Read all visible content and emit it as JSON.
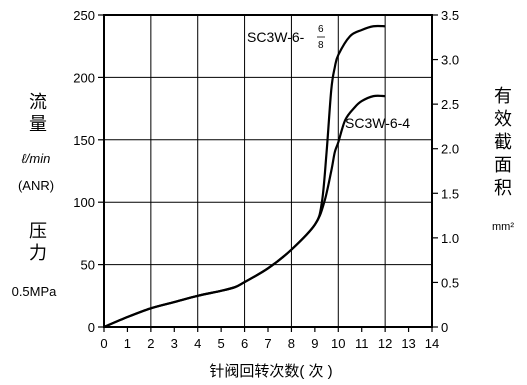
{
  "chart_data": {
    "type": "line",
    "x_axis": {
      "label": "针阀回转次数( 次 )",
      "range": [
        0,
        14
      ],
      "ticks": [
        "0",
        "1",
        "2",
        "3",
        "4",
        "5",
        "6",
        "7",
        "8",
        "9",
        "10",
        "11",
        "12",
        "13",
        "14"
      ]
    },
    "y_left": {
      "label_lines": [
        "流",
        "量"
      ],
      "unit": "ℓ/min",
      "unit_note": "(ANR)",
      "pressure_label_lines": [
        "压",
        "力"
      ],
      "pressure": "0.5MPa",
      "range": [
        0,
        250
      ],
      "ticks": [
        "0",
        "50",
        "100",
        "150",
        "200",
        "250"
      ]
    },
    "y_right": {
      "label_lines": [
        "有",
        "效",
        "截",
        "面",
        "积"
      ],
      "unit": "mm²",
      "range": [
        0,
        3.5
      ],
      "ticks": [
        "0",
        "0.5",
        "1.0",
        "1.5",
        "2.0",
        "2.5",
        "3.0",
        "3.5"
      ]
    },
    "grid": true,
    "series": [
      {
        "name": "SC3W-6-4",
        "points": [
          [
            0,
            0
          ],
          [
            1,
            8
          ],
          [
            2,
            15
          ],
          [
            3,
            20
          ],
          [
            4,
            25
          ],
          [
            5,
            29
          ],
          [
            5.6,
            32
          ],
          [
            6,
            36
          ],
          [
            7,
            47
          ],
          [
            8,
            62
          ],
          [
            9,
            82
          ],
          [
            9.4,
            100
          ],
          [
            9.7,
            125
          ],
          [
            9.85,
            140
          ],
          [
            10,
            148
          ],
          [
            10.3,
            166
          ],
          [
            10.7,
            176
          ],
          [
            11,
            181
          ],
          [
            11.5,
            185
          ],
          [
            12,
            185
          ]
        ]
      },
      {
        "name": "SC3W-6-6/8",
        "points": [
          [
            0,
            0
          ],
          [
            1,
            8
          ],
          [
            2,
            15
          ],
          [
            3,
            20
          ],
          [
            4,
            25
          ],
          [
            5,
            29
          ],
          [
            5.6,
            32
          ],
          [
            6,
            36
          ],
          [
            7,
            47
          ],
          [
            8,
            62
          ],
          [
            9,
            82
          ],
          [
            9.3,
            100
          ],
          [
            9.5,
            140
          ],
          [
            9.7,
            190
          ],
          [
            9.85,
            208
          ],
          [
            10,
            218
          ],
          [
            10.5,
            233
          ],
          [
            11,
            238
          ],
          [
            11.5,
            241
          ],
          [
            12,
            241
          ]
        ]
      }
    ]
  },
  "labels": {
    "series_a_base": "SC3W-6-",
    "series_a_sup": "6",
    "series_a_sub": "8",
    "series_b": "SC3W-6-4"
  }
}
